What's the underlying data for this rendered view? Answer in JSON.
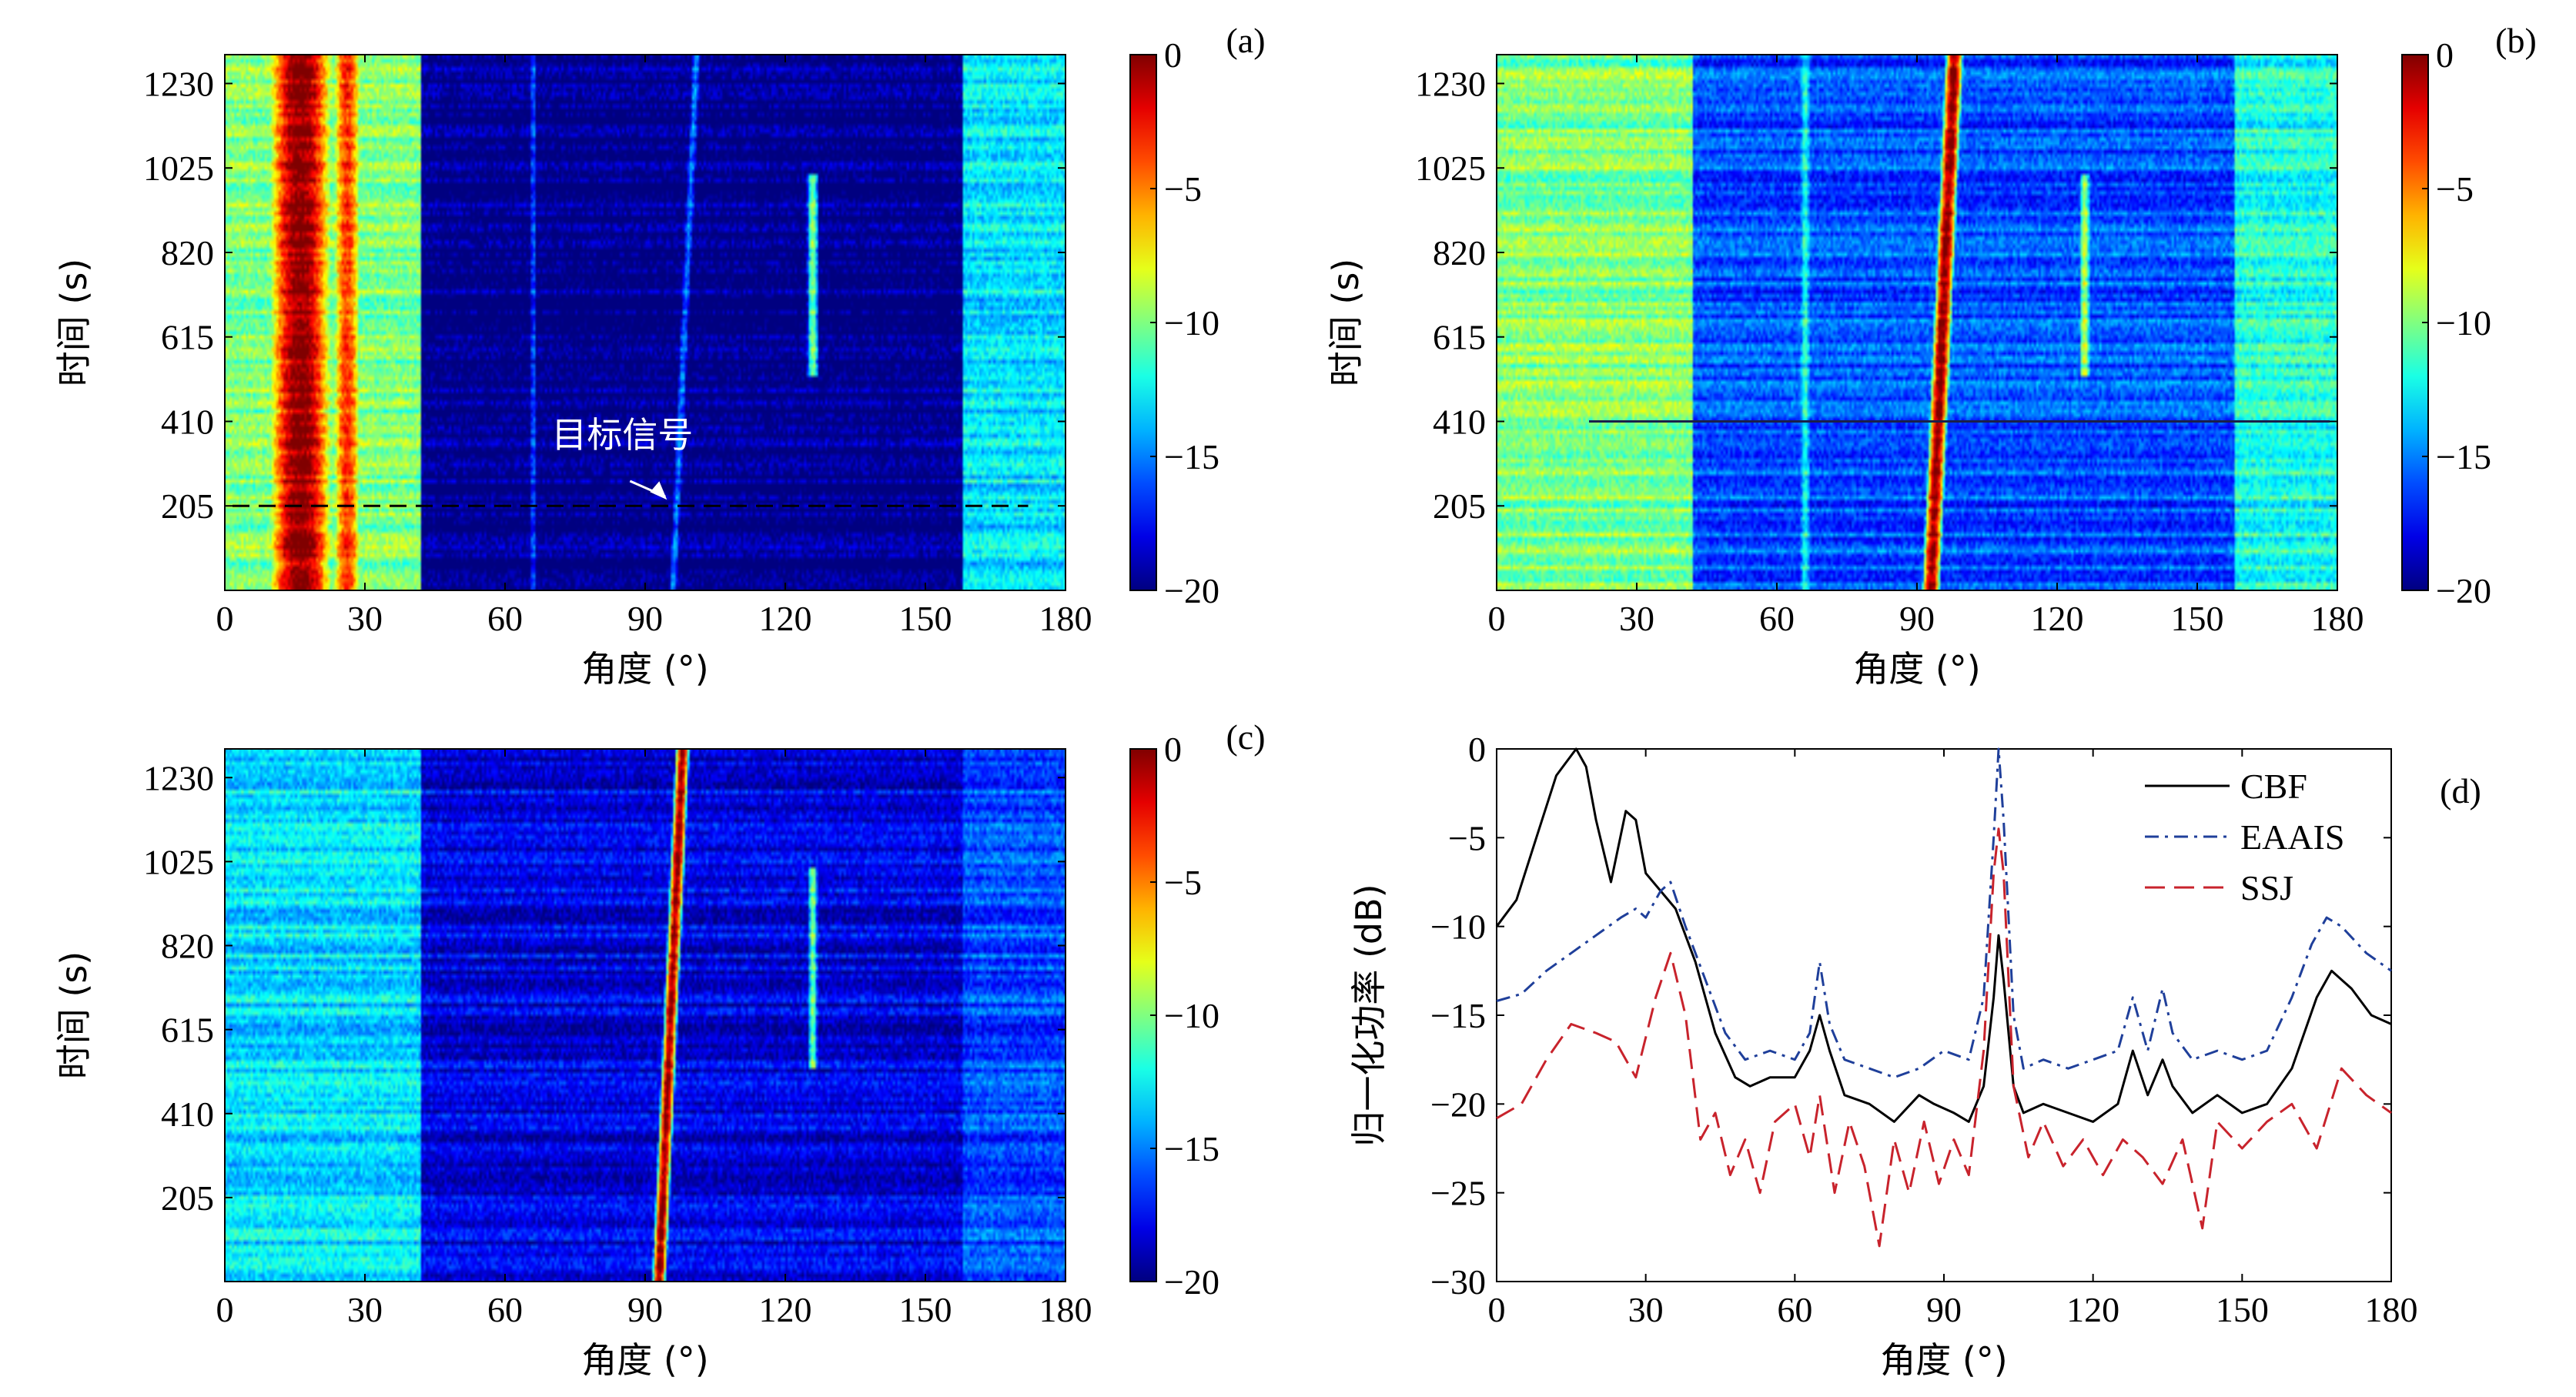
{
  "chart_data": [
    {
      "panel": "(a)",
      "type": "heatmap",
      "xlabel": "角度 (°)",
      "ylabel": "时间 (s)",
      "xlim": [
        0,
        180
      ],
      "ylim": [
        0,
        1300
      ],
      "xticks": [
        "0",
        "30",
        "60",
        "90",
        "120",
        "150",
        "180"
      ],
      "yticks": [
        "205",
        "410",
        "615",
        "820",
        "1025",
        "1230"
      ],
      "colorbar": {
        "min": -20,
        "max": 0,
        "ticks": [
          "0",
          "−5",
          "−10",
          "−15",
          "−20"
        ]
      },
      "annotation": {
        "text": "目标信号",
        "x": 95,
        "y": 205
      },
      "dashed_line_time": 205,
      "features": [
        {
          "kind": "strong",
          "center": 16,
          "width": 5,
          "value": 0
        },
        {
          "kind": "strong",
          "center": 26,
          "width": 2.5,
          "value": -3.5
        },
        {
          "kind": "band",
          "from": 0,
          "to": 42,
          "value": -10
        },
        {
          "kind": "band",
          "from": 158,
          "to": 180,
          "value": -13
        },
        {
          "kind": "weak",
          "center": 96,
          "width": 1,
          "value": -15,
          "drift": 5
        },
        {
          "kind": "weak",
          "center": 66,
          "width": 0.8,
          "value": -16
        },
        {
          "kind": "segment",
          "center": 126,
          "width": 1.2,
          "value": -10,
          "from": 520,
          "to": 1010
        }
      ]
    },
    {
      "panel": "(b)",
      "type": "heatmap",
      "xlabel": "角度 (°)",
      "ylabel": "时间 (s)",
      "xlim": [
        0,
        180
      ],
      "ylim": [
        0,
        1300
      ],
      "xticks": [
        "0",
        "30",
        "60",
        "90",
        "120",
        "150",
        "180"
      ],
      "yticks": [
        "205",
        "410",
        "615",
        "820",
        "1025",
        "1230"
      ],
      "colorbar": {
        "min": -20,
        "max": 0,
        "ticks": [
          "0",
          "−5",
          "−10",
          "−15",
          "−20"
        ]
      },
      "target_track": {
        "start_angle": 93,
        "end_angle": 98,
        "width": 1.6,
        "value": 0
      },
      "features": [
        {
          "kind": "band",
          "from": 0,
          "to": 42,
          "value": -10
        },
        {
          "kind": "band",
          "from": 158,
          "to": 180,
          "value": -12
        },
        {
          "kind": "band",
          "from": 42,
          "to": 158,
          "value": -16
        },
        {
          "kind": "weak",
          "center": 66,
          "width": 1.2,
          "value": -12
        },
        {
          "kind": "segment",
          "center": 126,
          "width": 1.2,
          "value": -9,
          "from": 520,
          "to": 1010
        }
      ]
    },
    {
      "panel": "(c)",
      "type": "heatmap",
      "xlabel": "角度 (°)",
      "ylabel": "时间 (s)",
      "xlim": [
        0,
        180
      ],
      "ylim": [
        0,
        1300
      ],
      "xticks": [
        "0",
        "30",
        "60",
        "90",
        "120",
        "150",
        "180"
      ],
      "yticks": [
        "205",
        "410",
        "615",
        "820",
        "1025",
        "1230"
      ],
      "colorbar": {
        "min": -20,
        "max": 0,
        "ticks": [
          "0",
          "−5",
          "−10",
          "−15",
          "−20"
        ]
      },
      "target_track": {
        "start_angle": 93,
        "end_angle": 98,
        "width": 1.2,
        "value": 0
      },
      "features": [
        {
          "kind": "band",
          "from": 0,
          "to": 42,
          "value": -13
        },
        {
          "kind": "band",
          "from": 158,
          "to": 180,
          "value": -16
        },
        {
          "kind": "band",
          "from": 42,
          "to": 158,
          "value": -18
        },
        {
          "kind": "segment",
          "center": 126,
          "width": 1.0,
          "value": -10,
          "from": 520,
          "to": 1010
        }
      ]
    },
    {
      "panel": "(d)",
      "type": "line",
      "xlabel": "角度 (°)",
      "ylabel": "归一化功率 (dB)",
      "xlim": [
        0,
        180
      ],
      "ylim": [
        -30,
        0
      ],
      "xticks": [
        "0",
        "30",
        "60",
        "90",
        "120",
        "150",
        "180"
      ],
      "yticks": [
        "0",
        "−5",
        "−10",
        "−15",
        "−20",
        "−25",
        "−30"
      ],
      "legend_position": "top-right",
      "series": [
        {
          "name": "CBF",
          "color": "#000000",
          "dash": "solid",
          "x": [
            0,
            4,
            8,
            12,
            16,
            18,
            20,
            23,
            26,
            28,
            30,
            33,
            36,
            40,
            44,
            48,
            51,
            55,
            60,
            63,
            65,
            67,
            70,
            75,
            80,
            85,
            88,
            92,
            95,
            98,
            100,
            101,
            102,
            104,
            106,
            110,
            115,
            120,
            125,
            128,
            131,
            134,
            136,
            140,
            145,
            150,
            155,
            160,
            165,
            168,
            172,
            176,
            180
          ],
          "y": [
            -10,
            -8.5,
            -5,
            -1.5,
            0,
            -1,
            -4,
            -7.5,
            -3.5,
            -4,
            -7,
            -8,
            -9,
            -12,
            -16,
            -18.5,
            -19,
            -18.5,
            -18.5,
            -17,
            -15,
            -17,
            -19.5,
            -20,
            -21,
            -19.5,
            -20,
            -20.5,
            -21,
            -19,
            -14,
            -10.5,
            -13,
            -19,
            -20.5,
            -20,
            -20.5,
            -21,
            -20,
            -17,
            -19.5,
            -17.5,
            -19,
            -20.5,
            -19.5,
            -20.5,
            -20,
            -18,
            -14,
            -12.5,
            -13.5,
            -15,
            -15.5
          ]
        },
        {
          "name": "EAAIS",
          "color": "#1f3f9a",
          "dash": "18 8 4 8",
          "x": [
            0,
            5,
            10,
            15,
            20,
            25,
            28,
            30,
            33,
            35,
            38,
            42,
            46,
            50,
            55,
            60,
            63,
            65,
            67,
            70,
            75,
            80,
            85,
            90,
            95,
            98,
            100,
            101,
            102,
            104,
            106,
            110,
            115,
            120,
            125,
            128,
            131,
            134,
            136,
            140,
            145,
            150,
            155,
            160,
            164,
            167,
            170,
            175,
            180
          ],
          "y": [
            -14.2,
            -13.8,
            -12.5,
            -11.5,
            -10.5,
            -9.5,
            -9,
            -9.5,
            -8,
            -7.5,
            -10,
            -13,
            -16,
            -17.5,
            -17,
            -17.5,
            -16,
            -12,
            -15.5,
            -17.5,
            -18,
            -18.5,
            -18,
            -17,
            -17.5,
            -14,
            -5,
            0,
            -4,
            -15,
            -18,
            -17.5,
            -18,
            -17.5,
            -17,
            -14,
            -17,
            -13.5,
            -16,
            -17.5,
            -17,
            -17.5,
            -17,
            -14,
            -11,
            -9.5,
            -10,
            -11.5,
            -12.5
          ]
        },
        {
          "name": "SSJ",
          "color": "#c8232c",
          "dash": "26 12",
          "x": [
            0,
            5,
            10,
            15,
            20,
            24,
            28,
            32,
            35,
            38,
            41,
            44,
            47,
            50,
            53,
            56,
            60,
            63,
            65,
            68,
            71,
            74,
            77,
            80,
            83,
            86,
            89,
            92,
            95,
            98,
            100,
            101,
            102,
            104,
            107,
            110,
            114,
            118,
            122,
            126,
            130,
            134,
            138,
            142,
            145,
            150,
            155,
            160,
            165,
            170,
            175,
            180
          ],
          "y": [
            -20.8,
            -20,
            -17.5,
            -15.5,
            -16,
            -16.5,
            -18.5,
            -14,
            -11.5,
            -15,
            -22,
            -20.5,
            -24,
            -22,
            -25,
            -21,
            -20,
            -23,
            -19.5,
            -25,
            -21,
            -23.5,
            -28,
            -22,
            -25,
            -21,
            -24.5,
            -22,
            -24,
            -17,
            -7,
            -4.5,
            -7,
            -19,
            -23,
            -21,
            -23.5,
            -22,
            -24,
            -22,
            -23,
            -24.5,
            -22,
            -27,
            -21,
            -22.5,
            -21,
            -20,
            -22.5,
            -18,
            -19.5,
            -20.5
          ]
        }
      ]
    }
  ]
}
